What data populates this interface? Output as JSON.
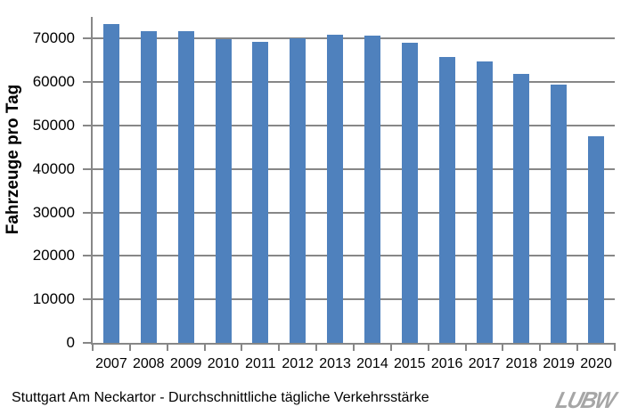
{
  "chart_data": {
    "type": "bar",
    "title": "",
    "categories": [
      "2007",
      "2008",
      "2009",
      "2010",
      "2011",
      "2012",
      "2013",
      "2014",
      "2015",
      "2016",
      "2017",
      "2018",
      "2019",
      "2020"
    ],
    "values": [
      73400,
      71700,
      71700,
      69900,
      69300,
      70100,
      71000,
      70800,
      69100,
      65800,
      64700,
      61900,
      59400,
      47600
    ],
    "xlabel": "",
    "ylabel": "Fahrzeuge pro Tag",
    "ylim": [
      0,
      75000
    ],
    "yticks": [
      0,
      10000,
      20000,
      30000,
      40000,
      50000,
      60000,
      70000
    ],
    "ytick_labels": [
      "0",
      "10000",
      "20000",
      "30000",
      "40000",
      "50000",
      "60000",
      "70000"
    ],
    "grid": true,
    "legend_position": "none",
    "bar_color": "#4F81BD",
    "grid_color": "#878787",
    "axis_color": "#878787",
    "text_color": "#000000"
  },
  "caption": "Stuttgart Am Neckartor - Durchschnittliche tägliche Verkehrsstärke",
  "logo": {
    "text": "LUBW",
    "color": "#A6A6A6"
  }
}
